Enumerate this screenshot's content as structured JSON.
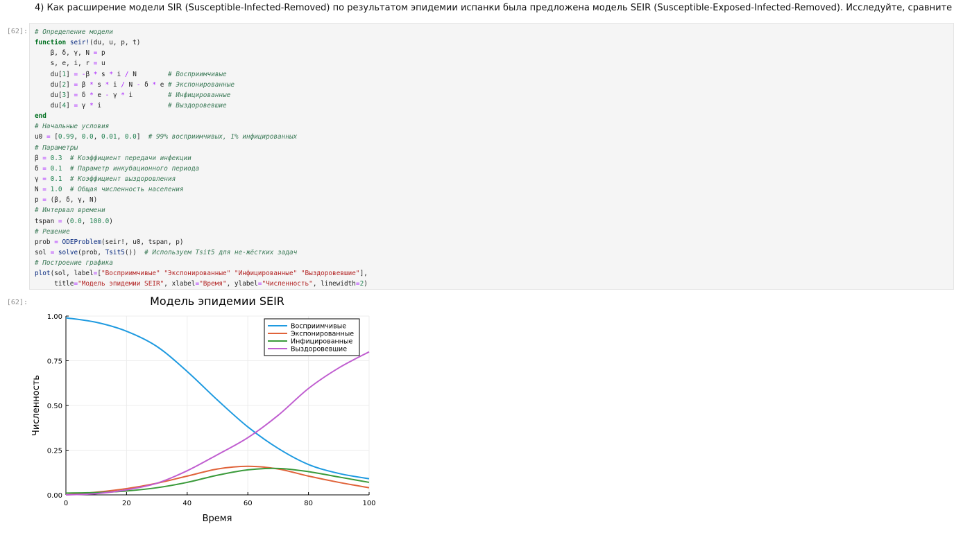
{
  "markdown": {
    "text": "4) Как расширение модели SIR (Susceptible-Infected-Removed) по результатом эпидемии испанки была предложена модель SEIR (Susceptible-Exposed-Infected-Removed). Исследуйте, сравните с SIR:"
  },
  "input_prompt": "[62]:",
  "output_prompt": "[62]:",
  "code_lines": [
    "# Определение модели",
    "function seir!(du, u, p, t)",
    "    β, δ, γ, N = p",
    "    s, e, i, r = u",
    "    du[1] = -β * s * i / N        # Восприимчивые",
    "    du[2] = β * s * i / N - δ * e # Экспонированные",
    "    du[3] = δ * e - γ * i         # Инфицированные",
    "    du[4] = γ * i                 # Выздоровевшие",
    "end",
    "# Начальные условия",
    "u0 = [0.99, 0.0, 0.01, 0.0]  # 99% восприимчивых, 1% инфицированных",
    "# Параметры",
    "β = 0.3  # Коэффициент передачи инфекции",
    "δ = 0.1  # Параметр инкубационного периода",
    "γ = 0.1  # Коэффициент выздоровления",
    "N = 1.0  # Общая численность населения",
    "p = (β, δ, γ, N)",
    "# Интервал времени",
    "tspan = (0.0, 100.0)",
    "# Решение",
    "prob = ODEProblem(seir!, u0, tspan, p)",
    "sol = solve(prob, Tsit5())  # Используем Tsit5 для не-жёстких задач",
    "# Построение графика",
    "plot(sol, label=[\"Восприимчивые\" \"Экспонированные\" \"Инфицированные\" \"Выздоровевшие\"],",
    "     title=\"Модель эпидемии SEIR\", xlabel=\"Время\", ylabel=\"Численность\", linewidth=2)"
  ],
  "colors": {
    "susceptible": "#1e9ae0",
    "exposed": "#e0633a",
    "infected": "#3a9a3a",
    "recovered": "#c05ed0"
  },
  "chart_data": {
    "type": "line",
    "title": "Модель эпидемии SEIR",
    "xlabel": "Время",
    "ylabel": "Численность",
    "xlim": [
      0,
      100
    ],
    "ylim": [
      0,
      1
    ],
    "xticks": [
      "0",
      "20",
      "40",
      "60",
      "80",
      "100"
    ],
    "yticks": [
      "0.00",
      "0.25",
      "0.50",
      "0.75",
      "1.00"
    ],
    "grid": true,
    "legend_position": "top-right",
    "x": [
      0,
      10,
      20,
      30,
      40,
      50,
      60,
      70,
      80,
      90,
      100
    ],
    "series": [
      {
        "name": "Восприимчивые",
        "color": "#1e9ae0",
        "values": [
          0.99,
          0.965,
          0.915,
          0.83,
          0.69,
          0.53,
          0.38,
          0.26,
          0.17,
          0.12,
          0.09
        ]
      },
      {
        "name": "Экспонированные",
        "color": "#e0633a",
        "values": [
          0.0,
          0.015,
          0.035,
          0.065,
          0.105,
          0.145,
          0.16,
          0.145,
          0.105,
          0.07,
          0.04
        ]
      },
      {
        "name": "Инфицированные",
        "color": "#3a9a3a",
        "values": [
          0.01,
          0.013,
          0.022,
          0.04,
          0.07,
          0.11,
          0.14,
          0.148,
          0.13,
          0.1,
          0.07
        ]
      },
      {
        "name": "Выздоровевшие",
        "color": "#c05ed0",
        "values": [
          0.0,
          0.007,
          0.028,
          0.065,
          0.135,
          0.225,
          0.32,
          0.445,
          0.595,
          0.71,
          0.8
        ]
      }
    ]
  }
}
